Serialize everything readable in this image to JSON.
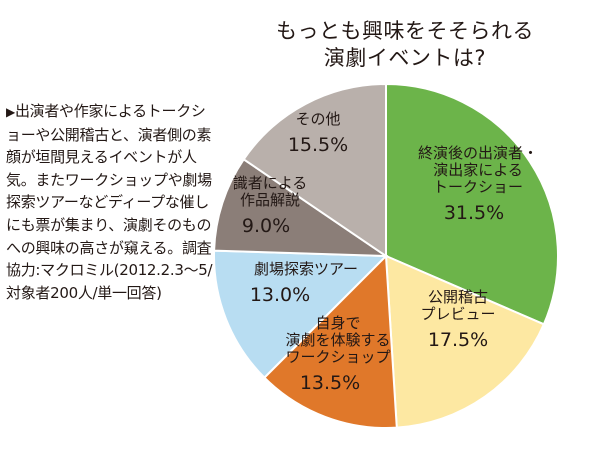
{
  "note": {
    "marker": "▶",
    "text": "出演者や作家によるトークショーや公開稽古と、演者側の素顔が垣間見えるイベントが人気。またワークショップや劇場探索ツアーなどディープな催しにも票が集まり、演劇そのものへの興味の高さが窺える。調査協力:マクロミル(2012.2.3〜5/対象者200人/単一回答)"
  },
  "chart_data": {
    "type": "pie",
    "title": [
      "もっとも興味をそそられる",
      "演劇イベントは?"
    ],
    "unit": "%",
    "slices": [
      {
        "label": [
          "終演後の出演者・",
          "演出家による",
          "トークショー"
        ],
        "value": 31.5,
        "color": "#6cb44a"
      },
      {
        "label": [
          "公開稽古",
          "プレビュー"
        ],
        "value": 17.5,
        "color": "#fde8a2"
      },
      {
        "label": [
          "自身で",
          "演劇を体験する",
          "ワークショップ"
        ],
        "value": 13.5,
        "color": "#e0782a"
      },
      {
        "label": [
          "劇場探索ツアー"
        ],
        "value": 13.0,
        "color": "#b8ddf2"
      },
      {
        "label": [
          "識者による",
          "作品解説"
        ],
        "value": 9.0,
        "color": "#8b7e78"
      },
      {
        "label": [
          "その他"
        ],
        "value": 15.5,
        "color": "#b9b0ab"
      }
    ]
  }
}
